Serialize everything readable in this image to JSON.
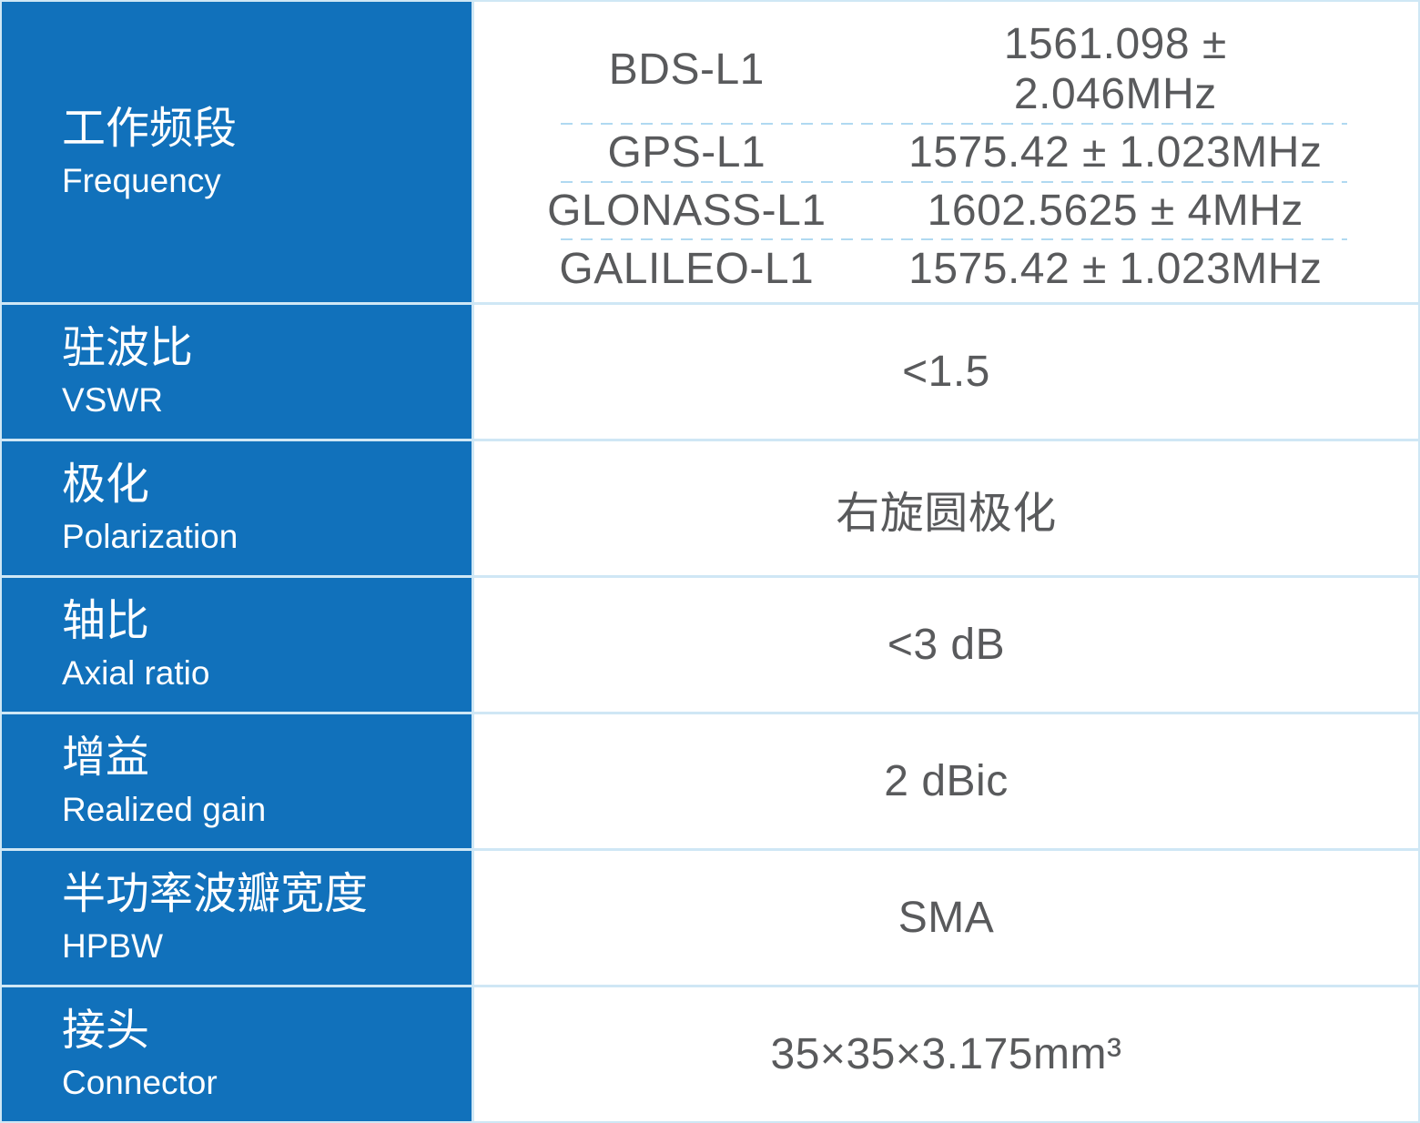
{
  "colors": {
    "accent_blue": "#1171bb",
    "divider_blue": "#cfe7f5",
    "dashed_blue": "#b0d9f1",
    "value_text": "#595a5c",
    "label_text": "#ffffff"
  },
  "table": {
    "rows": [
      {
        "label_zh": "工作频段",
        "label_en": "Frequency",
        "bands": [
          {
            "name": "BDS-L1",
            "value": "1561.098 ± 2.046MHz"
          },
          {
            "name": "GPS-L1",
            "value": "1575.42 ± 1.023MHz"
          },
          {
            "name": "GLONASS-L1",
            "value": "1602.5625 ± 4MHz"
          },
          {
            "name": "GALILEO-L1",
            "value": "1575.42 ± 1.023MHz"
          }
        ]
      },
      {
        "label_zh": "驻波比",
        "label_en": "VSWR",
        "value": "<1.5"
      },
      {
        "label_zh": "极化",
        "label_en": "Polarization",
        "value": "右旋圆极化"
      },
      {
        "label_zh": "轴比",
        "label_en": "Axial ratio",
        "value": "<3 dB"
      },
      {
        "label_zh": "增益",
        "label_en": "Realized gain",
        "value": "2 dBic"
      },
      {
        "label_zh": "半功率波瓣宽度",
        "label_en": "HPBW",
        "value": "SMA"
      },
      {
        "label_zh": "接头",
        "label_en": "Connector",
        "value": "35×35×3.175mm³"
      }
    ]
  }
}
